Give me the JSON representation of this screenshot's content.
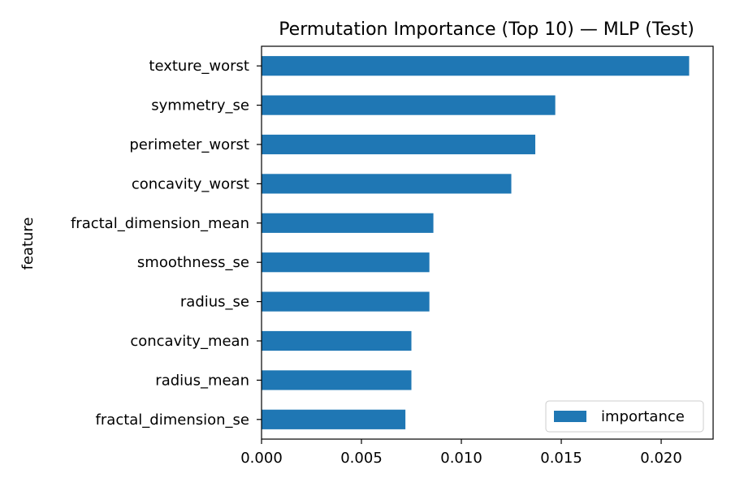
{
  "chart_data": {
    "type": "bar",
    "orientation": "horizontal",
    "title": "Permutation Importance (Top 10) — MLP (Test)",
    "ylabel": "feature",
    "xlabel": "",
    "categories": [
      "texture_worst",
      "symmetry_se",
      "perimeter_worst",
      "concavity_worst",
      "fractal_dimension_mean",
      "smoothness_se",
      "radius_se",
      "concavity_mean",
      "radius_mean",
      "fractal_dimension_se"
    ],
    "series": [
      {
        "name": "importance",
        "values": [
          0.0214,
          0.0147,
          0.0137,
          0.0125,
          0.0086,
          0.0084,
          0.0084,
          0.0075,
          0.0075,
          0.0072
        ],
        "color": "#1f77b4"
      }
    ],
    "xlim": [
      0,
      0.0226
    ],
    "xticks": [
      "0.000",
      "0.005",
      "0.010",
      "0.015",
      "0.020"
    ],
    "grid": false,
    "legend_position": "lower-right"
  }
}
